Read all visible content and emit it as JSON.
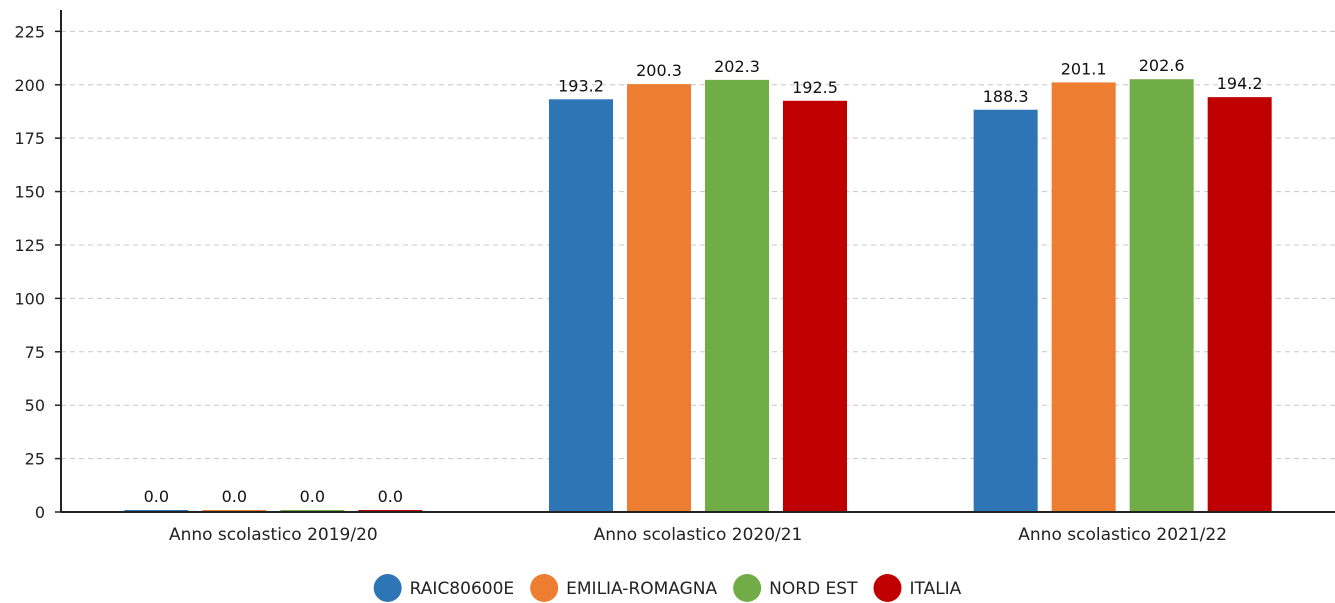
{
  "chart_data": {
    "type": "bar",
    "categories": [
      "Anno scolastico 2019/20",
      "Anno scolastico 2020/21",
      "Anno scolastico 2021/22"
    ],
    "series": [
      {
        "name": "RAIC80600E",
        "color": "#2e75b6",
        "values": [
          0.0,
          193.2,
          188.3
        ],
        "labels": [
          "0.0",
          "193.2",
          "188.3"
        ]
      },
      {
        "name": "EMILIA-ROMAGNA",
        "color": "#ed7d31",
        "values": [
          0.0,
          200.3,
          201.1
        ],
        "labels": [
          "0.0",
          "200.3",
          "201.1"
        ]
      },
      {
        "name": "NORD EST",
        "color": "#70ad47",
        "values": [
          0.0,
          202.3,
          202.6
        ],
        "labels": [
          "0.0",
          "202.3",
          "202.6"
        ]
      },
      {
        "name": "ITALIA",
        "color": "#c00000",
        "values": [
          0.0,
          192.5,
          194.2
        ],
        "labels": [
          "0.0",
          "192.5",
          "194.2"
        ]
      }
    ],
    "yticks": [
      "0",
      "25",
      "50",
      "75",
      "100",
      "125",
      "150",
      "175",
      "200",
      "225"
    ],
    "ylim": [
      0,
      235
    ],
    "grid": true,
    "legend_position": "bottom-center",
    "title": "",
    "xlabel": "",
    "ylabel": ""
  }
}
